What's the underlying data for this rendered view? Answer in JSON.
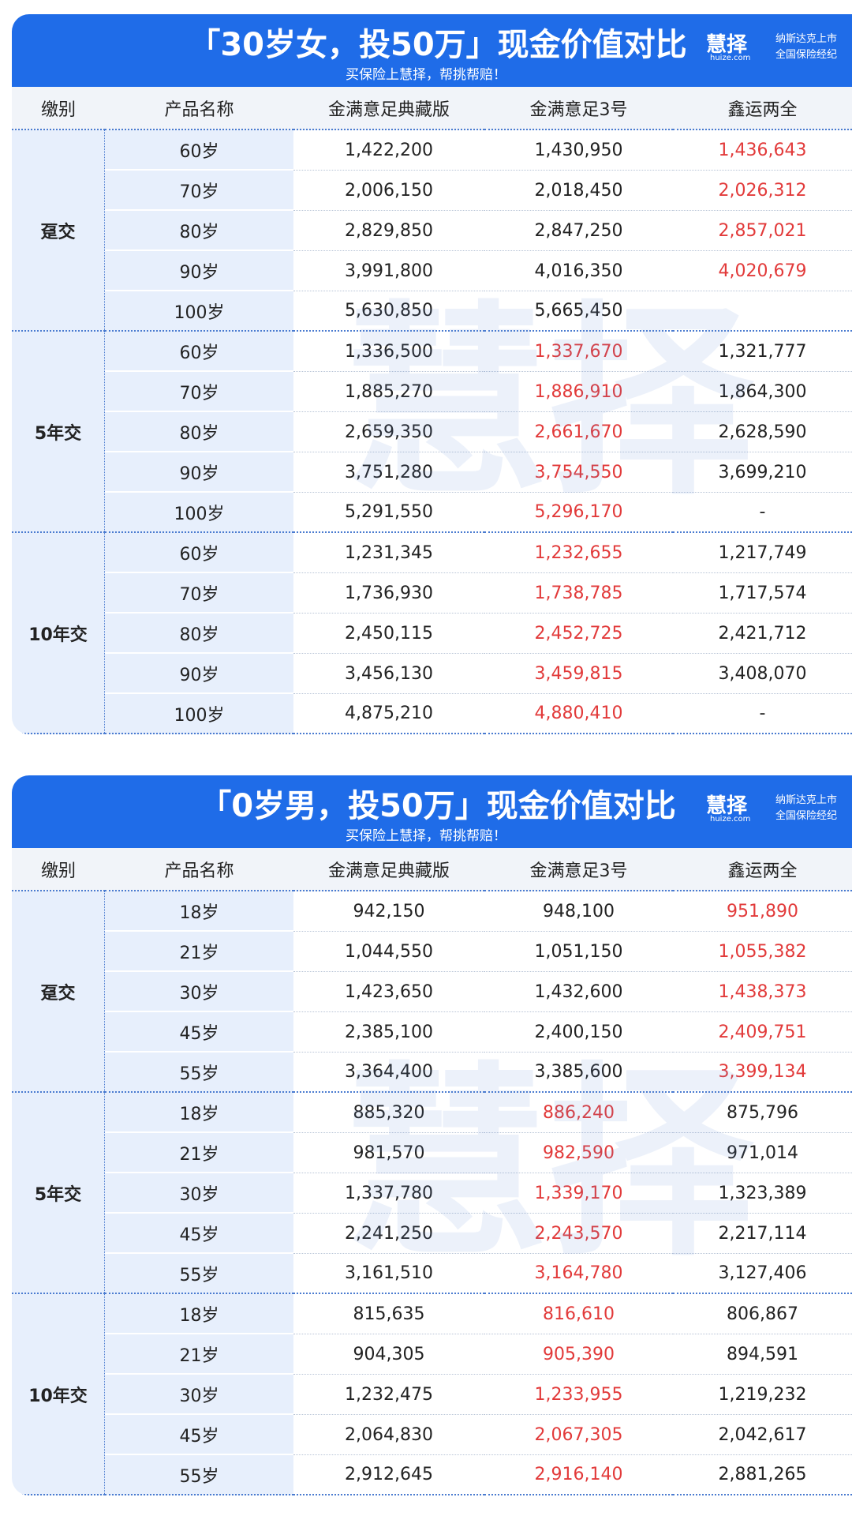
{
  "tables": [
    {
      "title": "「30岁女，投50万」现金价值对比",
      "subtitle": "买保险上慧择，帮挑帮赔！",
      "logo": {
        "name": "慧择",
        "domain": "huize.com",
        "line1": "纳斯达克上市",
        "line2": "全国保险经纪"
      },
      "watermark": "慧择",
      "columns": [
        "缴别",
        "产品名称",
        "金满意足典藏版",
        "金满意足3号",
        "鑫运两全"
      ],
      "groups": [
        {
          "name": "趸交",
          "highlight": 3,
          "rows": [
            [
              "60岁",
              "1,422,200",
              "1,430,950",
              "1,436,643"
            ],
            [
              "70岁",
              "2,006,150",
              "2,018,450",
              "2,026,312"
            ],
            [
              "80岁",
              "2,829,850",
              "2,847,250",
              "2,857,021"
            ],
            [
              "90岁",
              "3,991,800",
              "4,016,350",
              "4,020,679"
            ],
            [
              "100岁",
              "5,630,850",
              "5,665,450",
              null
            ]
          ]
        },
        {
          "name": "5年交",
          "highlight": 2,
          "rows": [
            [
              "60岁",
              "1,336,500",
              "1,337,670",
              "1,321,777"
            ],
            [
              "70岁",
              "1,885,270",
              "1,886,910",
              "1,864,300"
            ],
            [
              "80岁",
              "2,659,350",
              "2,661,670",
              "2,628,590"
            ],
            [
              "90岁",
              "3,751,280",
              "3,754,550",
              "3,699,210"
            ],
            [
              "100岁",
              "5,291,550",
              "5,296,170",
              "-"
            ]
          ]
        },
        {
          "name": "10年交",
          "highlight": 2,
          "rows": [
            [
              "60岁",
              "1,231,345",
              "1,232,655",
              "1,217,749"
            ],
            [
              "70岁",
              "1,736,930",
              "1,738,785",
              "1,717,574"
            ],
            [
              "80岁",
              "2,450,115",
              "2,452,725",
              "2,421,712"
            ],
            [
              "90岁",
              "3,456,130",
              "3,459,815",
              "3,408,070"
            ],
            [
              "100岁",
              "4,875,210",
              "4,880,410",
              "-"
            ]
          ]
        }
      ]
    },
    {
      "title": "「0岁男，投50万」现金价值对比",
      "subtitle": "买保险上慧择，帮挑帮赔！",
      "logo": {
        "name": "慧择",
        "domain": "huize.com",
        "line1": "纳斯达克上市",
        "line2": "全国保险经纪"
      },
      "watermark": "慧择",
      "columns": [
        "缴别",
        "产品名称",
        "金满意足典藏版",
        "金满意足3号",
        "鑫运两全"
      ],
      "groups": [
        {
          "name": "趸交",
          "highlight": 3,
          "rows": [
            [
              "18岁",
              "942,150",
              "948,100",
              "951,890"
            ],
            [
              "21岁",
              "1,044,550",
              "1,051,150",
              "1,055,382"
            ],
            [
              "30岁",
              "1,423,650",
              "1,432,600",
              "1,438,373"
            ],
            [
              "45岁",
              "2,385,100",
              "2,400,150",
              "2,409,751"
            ],
            [
              "55岁",
              "3,364,400",
              "3,385,600",
              "3,399,134"
            ]
          ]
        },
        {
          "name": "5年交",
          "highlight": 2,
          "rows": [
            [
              "18岁",
              "885,320",
              "886,240",
              "875,796"
            ],
            [
              "21岁",
              "981,570",
              "982,590",
              "971,014"
            ],
            [
              "30岁",
              "1,337,780",
              "1,339,170",
              "1,323,389"
            ],
            [
              "45岁",
              "2,241,250",
              "2,243,570",
              "2,217,114"
            ],
            [
              "55岁",
              "3,161,510",
              "3,164,780",
              "3,127,406"
            ]
          ]
        },
        {
          "name": "10年交",
          "highlight": 2,
          "rows": [
            [
              "18岁",
              "815,635",
              "816,610",
              "806,867"
            ],
            [
              "21岁",
              "904,305",
              "905,390",
              "894,591"
            ],
            [
              "30岁",
              "1,232,475",
              "1,233,955",
              "1,219,232"
            ],
            [
              "45岁",
              "2,064,830",
              "2,067,305",
              "2,042,617"
            ],
            [
              "55岁",
              "2,912,645",
              "2,916,140",
              "2,881,265"
            ]
          ]
        }
      ]
    }
  ]
}
